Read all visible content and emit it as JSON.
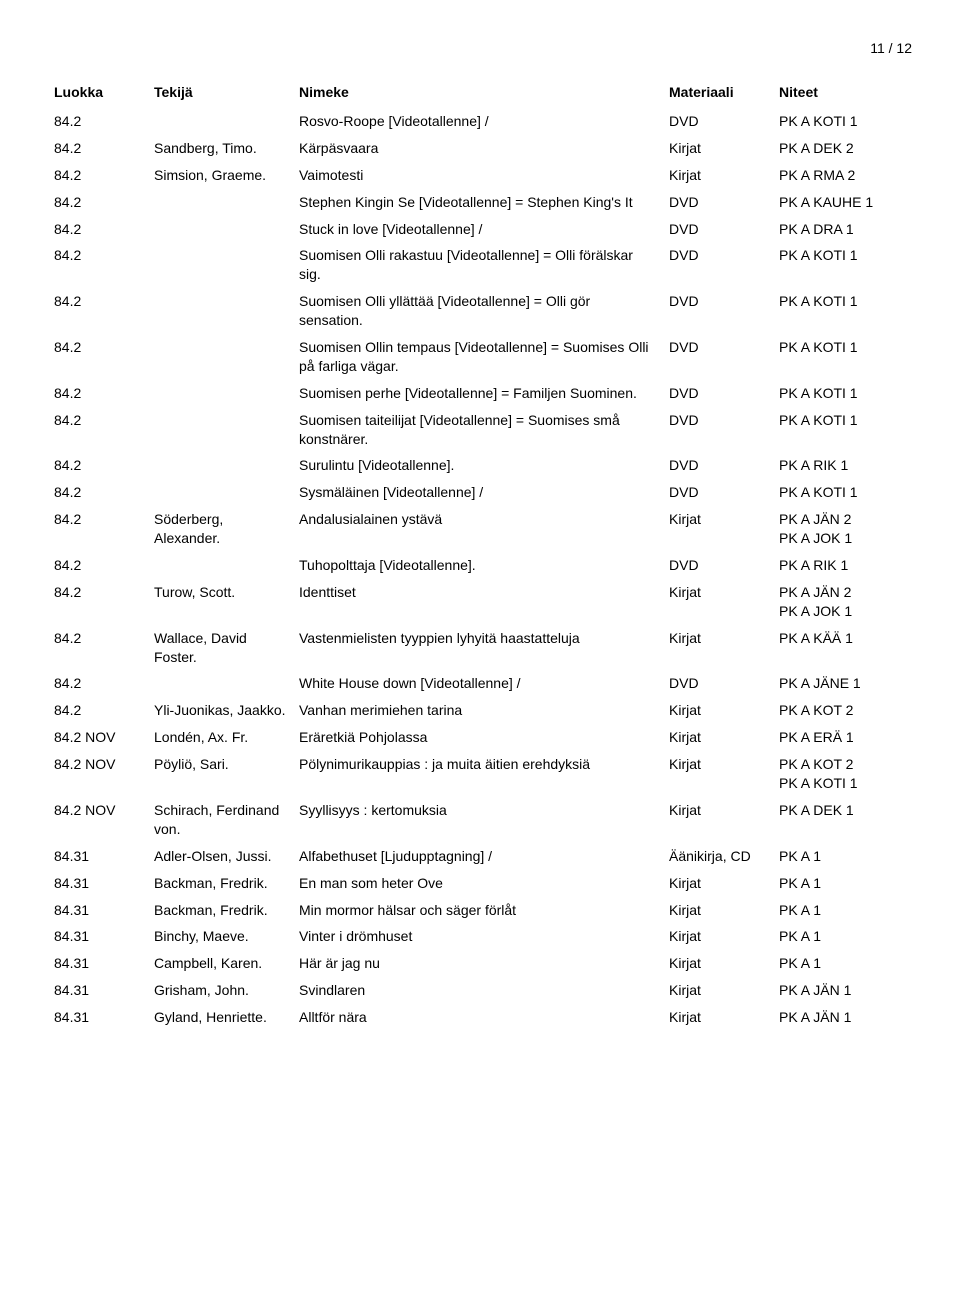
{
  "page_number": "11 / 12",
  "headers": {
    "luokka": "Luokka",
    "tekija": "Tekijä",
    "nimeke": "Nimeke",
    "materiaali": "Materiaali",
    "niteet": "Niteet"
  },
  "rows": [
    {
      "luokka": "84.2",
      "tekija": "",
      "nimeke": "Rosvo-Roope [Videotallenne]  /",
      "materiaali": "DVD",
      "niteet": "PK A KOTI 1"
    },
    {
      "luokka": "84.2",
      "tekija": "Sandberg, Timo.",
      "nimeke": "Kärpäsvaara",
      "materiaali": "Kirjat",
      "niteet": "PK A DEK 2"
    },
    {
      "luokka": "84.2",
      "tekija": "Simsion, Graeme.",
      "nimeke": "Vaimotesti",
      "materiaali": "Kirjat",
      "niteet": "PK A RMA 2"
    },
    {
      "luokka": "84.2",
      "tekija": "",
      "nimeke": "Stephen Kingin Se [Videotallenne] = Stephen King's It",
      "materiaali": "DVD",
      "niteet": "PK A KAUHE 1"
    },
    {
      "luokka": "84.2",
      "tekija": "",
      "nimeke": "Stuck in love [Videotallenne]  /",
      "materiaali": "DVD",
      "niteet": "PK A DRA 1"
    },
    {
      "luokka": "84.2",
      "tekija": "",
      "nimeke": "Suomisen Olli rakastuu [Videotallenne] = Olli förälskar sig.",
      "materiaali": "DVD",
      "niteet": "PK A KOTI 1"
    },
    {
      "luokka": "84.2",
      "tekija": "",
      "nimeke": "Suomisen Olli yllättää [Videotallenne] = Olli gör sensation.",
      "materiaali": "DVD",
      "niteet": "PK A KOTI 1"
    },
    {
      "luokka": "84.2",
      "tekija": "",
      "nimeke": "Suomisen Ollin tempaus [Videotallenne] = Suomises Olli på farliga vägar.",
      "materiaali": "DVD",
      "niteet": "PK A KOTI 1"
    },
    {
      "luokka": "84.2",
      "tekija": "",
      "nimeke": "Suomisen perhe [Videotallenne] = Familjen Suominen.",
      "materiaali": "DVD",
      "niteet": "PK A KOTI 1"
    },
    {
      "luokka": "84.2",
      "tekija": "",
      "nimeke": "Suomisen taiteilijat [Videotallenne] = Suomises små konstnärer.",
      "materiaali": "DVD",
      "niteet": "PK A KOTI 1"
    },
    {
      "luokka": "84.2",
      "tekija": "",
      "nimeke": "Surulintu [Videotallenne].",
      "materiaali": "DVD",
      "niteet": "PK A RIK 1"
    },
    {
      "luokka": "84.2",
      "tekija": "",
      "nimeke": "Sysmäläinen [Videotallenne]  /",
      "materiaali": "DVD",
      "niteet": "PK A KOTI 1"
    },
    {
      "luokka": "84.2",
      "tekija": "Söderberg, Alexander.",
      "nimeke": "Andalusialainen ystävä",
      "materiaali": "Kirjat",
      "niteet": "PK A JÄN 2\nPK A JOK 1"
    },
    {
      "luokka": "84.2",
      "tekija": "",
      "nimeke": "Tuhopolttaja [Videotallenne].",
      "materiaali": "DVD",
      "niteet": "PK A RIK 1"
    },
    {
      "luokka": "84.2",
      "tekija": "Turow, Scott.",
      "nimeke": "Identtiset",
      "materiaali": "Kirjat",
      "niteet": "PK A JÄN 2\nPK A JOK 1"
    },
    {
      "luokka": "84.2",
      "tekija": "Wallace, David Foster.",
      "nimeke": "Vastenmielisten tyyppien lyhyitä haastatteluja",
      "materiaali": "Kirjat",
      "niteet": "PK A KÄÄ 1"
    },
    {
      "luokka": "84.2",
      "tekija": "",
      "nimeke": "White House down [Videotallenne]  /",
      "materiaali": "DVD",
      "niteet": "PK A JÄNE 1"
    },
    {
      "luokka": "84.2",
      "tekija": "Yli-Juonikas, Jaakko.",
      "nimeke": "Vanhan merimiehen tarina",
      "materiaali": "Kirjat",
      "niteet": "PK A KOT 2"
    },
    {
      "luokka": "84.2 NOV",
      "tekija": "Londén, Ax. Fr.",
      "nimeke": "Eräretkiä Pohjolassa",
      "materiaali": "Kirjat",
      "niteet": "PK A ERÄ 1"
    },
    {
      "luokka": "84.2 NOV",
      "tekija": "Pöyliö, Sari.",
      "nimeke": "Pölynimurikauppias : ja muita äitien erehdyksiä",
      "materiaali": "Kirjat",
      "niteet": "PK A KOT 2\nPK A KOTI 1"
    },
    {
      "luokka": "84.2 NOV",
      "tekija": "Schirach, Ferdinand von.",
      "nimeke": "Syyllisyys : kertomuksia",
      "materiaali": "Kirjat",
      "niteet": "PK A DEK 1"
    },
    {
      "luokka": "84.31",
      "tekija": "Adler-Olsen, Jussi.",
      "nimeke": "Alfabethuset [Ljudupptagning]  /",
      "materiaali": "Äänikirja, CD",
      "niteet": "PK A 1"
    },
    {
      "luokka": "84.31",
      "tekija": "Backman, Fredrik.",
      "nimeke": "En man som heter Ove",
      "materiaali": "Kirjat",
      "niteet": "PK A 1"
    },
    {
      "luokka": "84.31",
      "tekija": "Backman, Fredrik.",
      "nimeke": "Min mormor hälsar och säger förlåt",
      "materiaali": "Kirjat",
      "niteet": "PK A 1"
    },
    {
      "luokka": "84.31",
      "tekija": "Binchy, Maeve.",
      "nimeke": "Vinter i drömhuset",
      "materiaali": "Kirjat",
      "niteet": "PK A 1"
    },
    {
      "luokka": "84.31",
      "tekija": "Campbell, Karen.",
      "nimeke": "Här är jag nu",
      "materiaali": "Kirjat",
      "niteet": "PK A 1"
    },
    {
      "luokka": "84.31",
      "tekija": "Grisham, John.",
      "nimeke": "Svindlaren",
      "materiaali": "Kirjat",
      "niteet": "PK A JÄN 1"
    },
    {
      "luokka": "84.31",
      "tekija": "Gyland, Henriette.",
      "nimeke": "Alltför nära",
      "materiaali": "Kirjat",
      "niteet": "PK A JÄN 1"
    }
  ]
}
